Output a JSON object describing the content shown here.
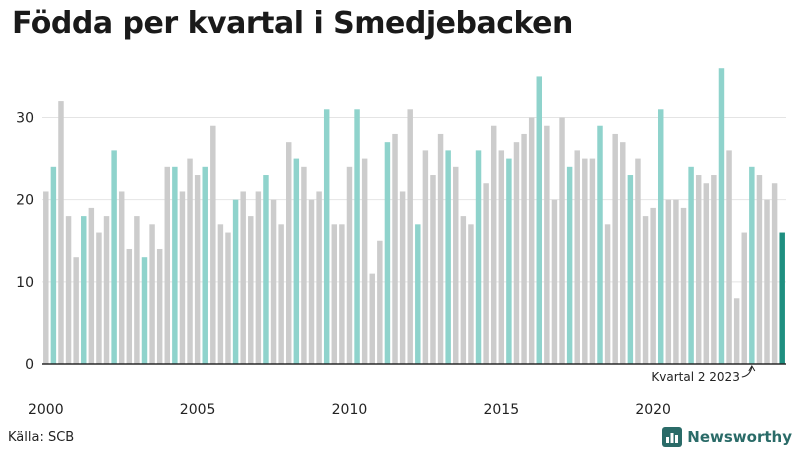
{
  "header": {
    "title": "Födda per kvartal i Smedjebacken"
  },
  "footer": {
    "source": "Källa: SCB",
    "brand": "Newsworthy"
  },
  "icons": {
    "brand_logo": "bar-chart-icon"
  },
  "colors": {
    "q2_bar": "#8fd3cc",
    "other_bar": "#cccccc",
    "highlight_bar": "#1f8f80",
    "brand": "#2a6b68"
  },
  "chart_data": {
    "type": "bar",
    "title": "Födda per kvartal i Smedjebacken",
    "xlabel": "",
    "ylabel": "",
    "ylim": [
      0,
      37
    ],
    "yticks": [
      0,
      10,
      20,
      30
    ],
    "grid": true,
    "start": {
      "year": 2000,
      "quarter": 1
    },
    "xtick_labels": [
      "2000",
      "2005",
      "2010",
      "2015",
      "2020"
    ],
    "values": [
      21,
      24,
      32,
      18,
      13,
      18,
      19,
      16,
      18,
      26,
      21,
      14,
      18,
      13,
      17,
      14,
      24,
      24,
      21,
      25,
      23,
      24,
      29,
      17,
      16,
      20,
      21,
      18,
      21,
      23,
      20,
      17,
      27,
      25,
      24,
      20,
      21,
      31,
      17,
      17,
      24,
      31,
      25,
      11,
      15,
      27,
      28,
      21,
      31,
      17,
      26,
      23,
      28,
      26,
      24,
      18,
      17,
      26,
      22,
      29,
      26,
      25,
      27,
      28,
      30,
      35,
      29,
      20,
      30,
      24,
      26,
      25,
      25,
      29,
      17,
      28,
      27,
      23,
      25,
      18,
      19,
      31,
      20,
      20,
      19,
      24,
      23,
      22,
      23,
      36,
      26,
      8,
      16,
      24,
      23,
      20,
      22,
      16
    ],
    "annotation": {
      "text": "Kvartal 2 2023",
      "year": 2023,
      "quarter": 2
    }
  }
}
